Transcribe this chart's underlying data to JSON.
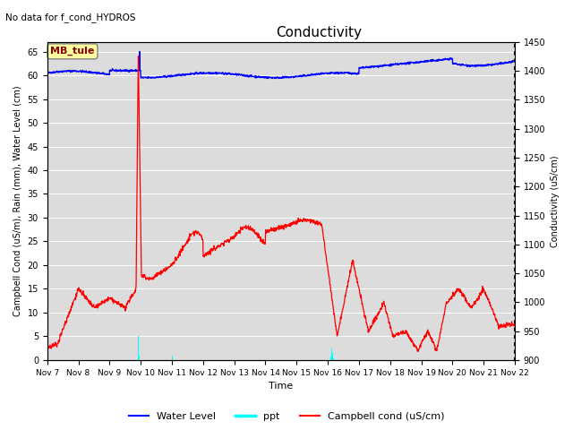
{
  "title": "Conductivity",
  "top_left_text": "No data for f_cond_HYDROS",
  "xlabel": "Time",
  "ylabel_left": "Campbell Cond (uS/m), Rain (mm), Water Level (cm)",
  "ylabel_right": "Conductivity (uS/cm)",
  "ylim_left": [
    0,
    67
  ],
  "ylim_right": [
    900,
    1450
  ],
  "xlim": [
    0,
    15
  ],
  "legend_labels": [
    "Water Level",
    "ppt",
    "Campbell cond (uS/cm)"
  ],
  "annotation_box": "MB_tule",
  "bg_color": "#dcdcdc",
  "yticks_left": [
    0,
    5,
    10,
    15,
    20,
    25,
    30,
    35,
    40,
    45,
    50,
    55,
    60,
    65
  ],
  "yticks_right": [
    900,
    950,
    1000,
    1050,
    1100,
    1150,
    1200,
    1250,
    1300,
    1350,
    1400,
    1450
  ],
  "xtick_labels": [
    "Nov 7",
    "Nov 8",
    "Nov 9",
    "Nov 10",
    "Nov 11",
    "Nov 12",
    "Nov 13",
    "Nov 14",
    "Nov 15",
    "Nov 16",
    "Nov 17",
    "Nov 18",
    "Nov 19",
    "Nov 20",
    "Nov 21",
    "Nov 22"
  ],
  "xtick_positions": [
    0,
    1,
    2,
    3,
    4,
    5,
    6,
    7,
    8,
    9,
    10,
    11,
    12,
    13,
    14,
    15
  ]
}
